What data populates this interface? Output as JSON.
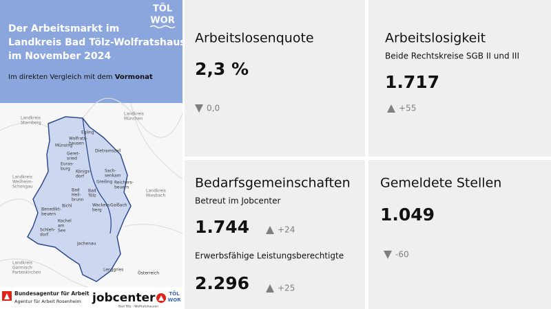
{
  "header": {
    "title_lines": [
      "Der Arbeitsmarkt im",
      "Landkreis Bad Tölz-Wolfratshausen",
      "im November 2024"
    ],
    "subtitle": "Im direkten Vergleich mit dem ",
    "subtitle_bold": "Vormonat",
    "logo": [
      "TÖL",
      "WOR"
    ]
  },
  "map": {
    "labels": [
      {
        "text": [
          "Landkreis",
          "Starnberg"
        ]
      },
      {
        "text": [
          "Landkreis",
          "München"
        ]
      },
      {
        "text": [
          "Egling"
        ]
      },
      {
        "text": [
          "Wolfrats-",
          "hausen"
        ]
      },
      {
        "text": [
          "Münsing"
        ]
      },
      {
        "text": [
          "Geret-",
          "sried"
        ]
      },
      {
        "text": [
          "Dietramszell"
        ]
      },
      {
        "text": [
          "Euras-",
          "burg"
        ]
      },
      {
        "text": [
          "Königs-",
          "dorf"
        ]
      },
      {
        "text": [
          "Sach-",
          "senkam"
        ]
      },
      {
        "text": [
          "Greiling"
        ]
      },
      {
        "text": [
          "Reichers-",
          "beuern"
        ]
      },
      {
        "text": [
          "Bad",
          "Tölz"
        ]
      },
      {
        "text": [
          "Bad",
          "Heil-",
          "brunn"
        ]
      },
      {
        "text": [
          "Wackers-",
          "berg"
        ]
      },
      {
        "text": [
          "Gaißach"
        ]
      },
      {
        "text": [
          "Bichl"
        ]
      },
      {
        "text": [
          "Benedikt-",
          "beuern"
        ]
      },
      {
        "text": [
          "Kochel",
          "am",
          "See"
        ]
      },
      {
        "text": [
          "Schleh-",
          "dorf"
        ]
      },
      {
        "text": [
          "Jachenau"
        ]
      },
      {
        "text": [
          "Lenggries"
        ]
      },
      {
        "text": [
          "Landkreis",
          "Weilheim-",
          "Schongau"
        ]
      },
      {
        "text": [
          "Landkreis",
          "Miesbach"
        ]
      },
      {
        "text": [
          "Landkreis",
          "Garmisch-",
          "Partenkirchen"
        ]
      },
      {
        "text": [
          "Österreich"
        ]
      }
    ]
  },
  "footer": {
    "ba_name": "Bundesagentur für Arbeit",
    "ba_agency": "Agentur für Arbeit Rosenheim",
    "jobcenter": "jobcenter",
    "jobcenter_sub": "Bad Tölz - Wolfratshausen",
    "logo": [
      "TÖL",
      "WOR"
    ]
  },
  "cards": [
    {
      "title": "Arbeitslosenquote",
      "items": [
        {
          "value": "2,3 %",
          "change": "0,0",
          "trend": "down"
        }
      ]
    },
    {
      "title": "Arbeitslosigkeit",
      "items": [
        {
          "label": "Beide Rechtskreise SGB II und III",
          "value": "1.717",
          "change": "+55",
          "trend": "up"
        }
      ]
    },
    {
      "title": "Bedarfsgemeinschaften",
      "items": [
        {
          "label": "Betreut im Jobcenter",
          "value": "1.744",
          "change": "+24",
          "trend": "up"
        },
        {
          "label": "Erwerbsfähige Leistungsberechtigte",
          "value": "2.296",
          "change": "+25",
          "trend": "up"
        }
      ]
    },
    {
      "title": "Gemeldete Stellen",
      "items": [
        {
          "value": "1.049",
          "change": "-60",
          "trend": "down"
        }
      ]
    }
  ]
}
